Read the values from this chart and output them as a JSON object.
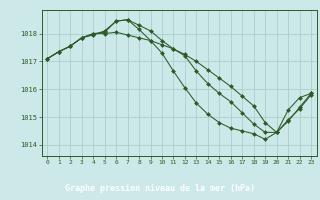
{
  "title": "Graphe pression niveau de la mer (hPa)",
  "bg_color": "#cce8e8",
  "plot_bg_color": "#cce8e8",
  "label_bg_color": "#2d5a27",
  "grid_color": "#aad0cc",
  "line_color": "#2d5a27",
  "marker_color": "#2d5a27",
  "label_text_color": "#ffffff",
  "xlim": [
    -0.5,
    23.5
  ],
  "ylim": [
    1013.6,
    1018.85
  ],
  "yticks": [
    1014,
    1015,
    1016,
    1017,
    1018
  ],
  "xticks": [
    0,
    1,
    2,
    3,
    4,
    5,
    6,
    7,
    8,
    9,
    10,
    11,
    12,
    13,
    14,
    15,
    16,
    17,
    18,
    19,
    20,
    21,
    22,
    23
  ],
  "series": [
    {
      "x": [
        0,
        1,
        2,
        3,
        4,
        5,
        6,
        7,
        8,
        9,
        10,
        11,
        12,
        13,
        14,
        15,
        16,
        17,
        18,
        19,
        20,
        21,
        22,
        23
      ],
      "y": [
        1017.1,
        1017.35,
        1017.55,
        1017.85,
        1018.0,
        1018.05,
        1018.45,
        1018.5,
        1018.3,
        1018.1,
        1017.75,
        1017.45,
        1017.2,
        1016.65,
        1016.2,
        1015.85,
        1015.55,
        1015.15,
        1014.75,
        1014.45,
        1014.45,
        1015.25,
        1015.7,
        1015.85
      ]
    },
    {
      "x": [
        0,
        1,
        2,
        3,
        4,
        5,
        6,
        7,
        8,
        9,
        10,
        11,
        12,
        13,
        14,
        15,
        16,
        17,
        18,
        19,
        20,
        21,
        22,
        23
      ],
      "y": [
        1017.1,
        1017.35,
        1017.55,
        1017.85,
        1018.0,
        1018.0,
        1018.05,
        1017.95,
        1017.85,
        1017.75,
        1017.6,
        1017.45,
        1017.25,
        1017.0,
        1016.7,
        1016.4,
        1016.1,
        1015.75,
        1015.4,
        1014.8,
        1014.45,
        1014.85,
        1015.35,
        1015.85
      ]
    },
    {
      "x": [
        0,
        1,
        2,
        3,
        4,
        5,
        6,
        7,
        8,
        9,
        10,
        11,
        12,
        13,
        14,
        15,
        16,
        17,
        18,
        19,
        20,
        21,
        22,
        23
      ],
      "y": [
        1017.1,
        1017.35,
        1017.55,
        1017.85,
        1017.95,
        1018.1,
        1018.45,
        1018.5,
        1018.15,
        1017.75,
        1017.3,
        1016.65,
        1016.05,
        1015.5,
        1015.1,
        1014.8,
        1014.6,
        1014.5,
        1014.4,
        1014.2,
        1014.45,
        1014.9,
        1015.3,
        1015.8
      ]
    }
  ]
}
